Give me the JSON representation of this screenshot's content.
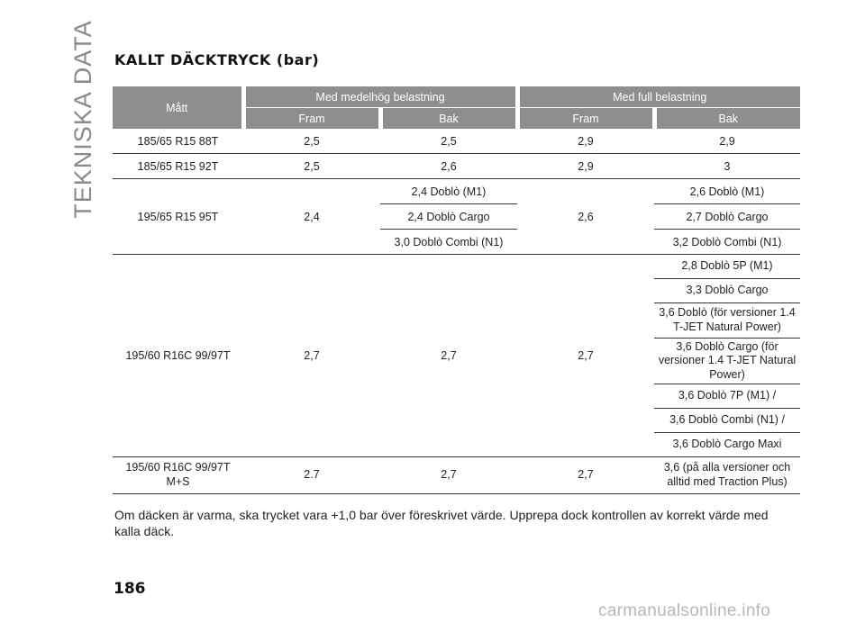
{
  "side_title": "TEKNISKA DATA",
  "section_title": "KALLT DÄCKTRYCK (bar)",
  "table": {
    "col_size": "Mått",
    "group_medium": "Med medelhög belastning",
    "group_full": "Med full belastning",
    "front": "Fram",
    "rear": "Bak",
    "row1": {
      "size": "185/65 R15 88T",
      "mf": "2,5",
      "mr": "2,5",
      "ff": "2,9",
      "fr": "2,9"
    },
    "row2": {
      "size": "185/65 R15 92T",
      "mf": "2,5",
      "mr": "2,6",
      "ff": "2,9",
      "fr": "3"
    },
    "row3": {
      "size": "195/65 R15 95T",
      "mf": "2,4",
      "ff": "2,6",
      "mr": [
        "2,4 Doblò (M1)",
        "2,4 Doblò Cargo",
        "3,0 Doblò Combi (N1)"
      ],
      "fr": [
        "2,6 Doblò (M1)",
        "2,7 Doblò Cargo",
        "3,2 Doblò Combi (N1)"
      ]
    },
    "row4": {
      "size": "195/60 R16C 99/97T",
      "mf": "2,7",
      "mr": "2,7",
      "ff": "2,7",
      "fr": [
        "2,8 Doblò 5P (M1)",
        "3,3 Doblò Cargo",
        "3,6 Doblò (för versioner 1.4 T-JET Natural Power)",
        "3,6 Doblò Cargo (för versioner 1.4 T-JET Natural Power)",
        "3,6 Doblò 7P (M1) /",
        "3,6 Doblò Combi (N1) /",
        "3,6 Doblò Cargo Maxi"
      ]
    },
    "row5": {
      "size": "195/60 R16C 99/97T M+S",
      "mf": "2.7",
      "mr": "2,7",
      "ff": "2,7",
      "fr": "3,6 (på alla versioner och alltid med Traction Plus)"
    }
  },
  "note": "Om däcken är varma, ska trycket vara +1,0 bar över föreskrivet värde. Upprepa dock kontrollen av korrekt värde med kalla däck.",
  "page_number": "186",
  "watermark": "carmanualsonline.info"
}
